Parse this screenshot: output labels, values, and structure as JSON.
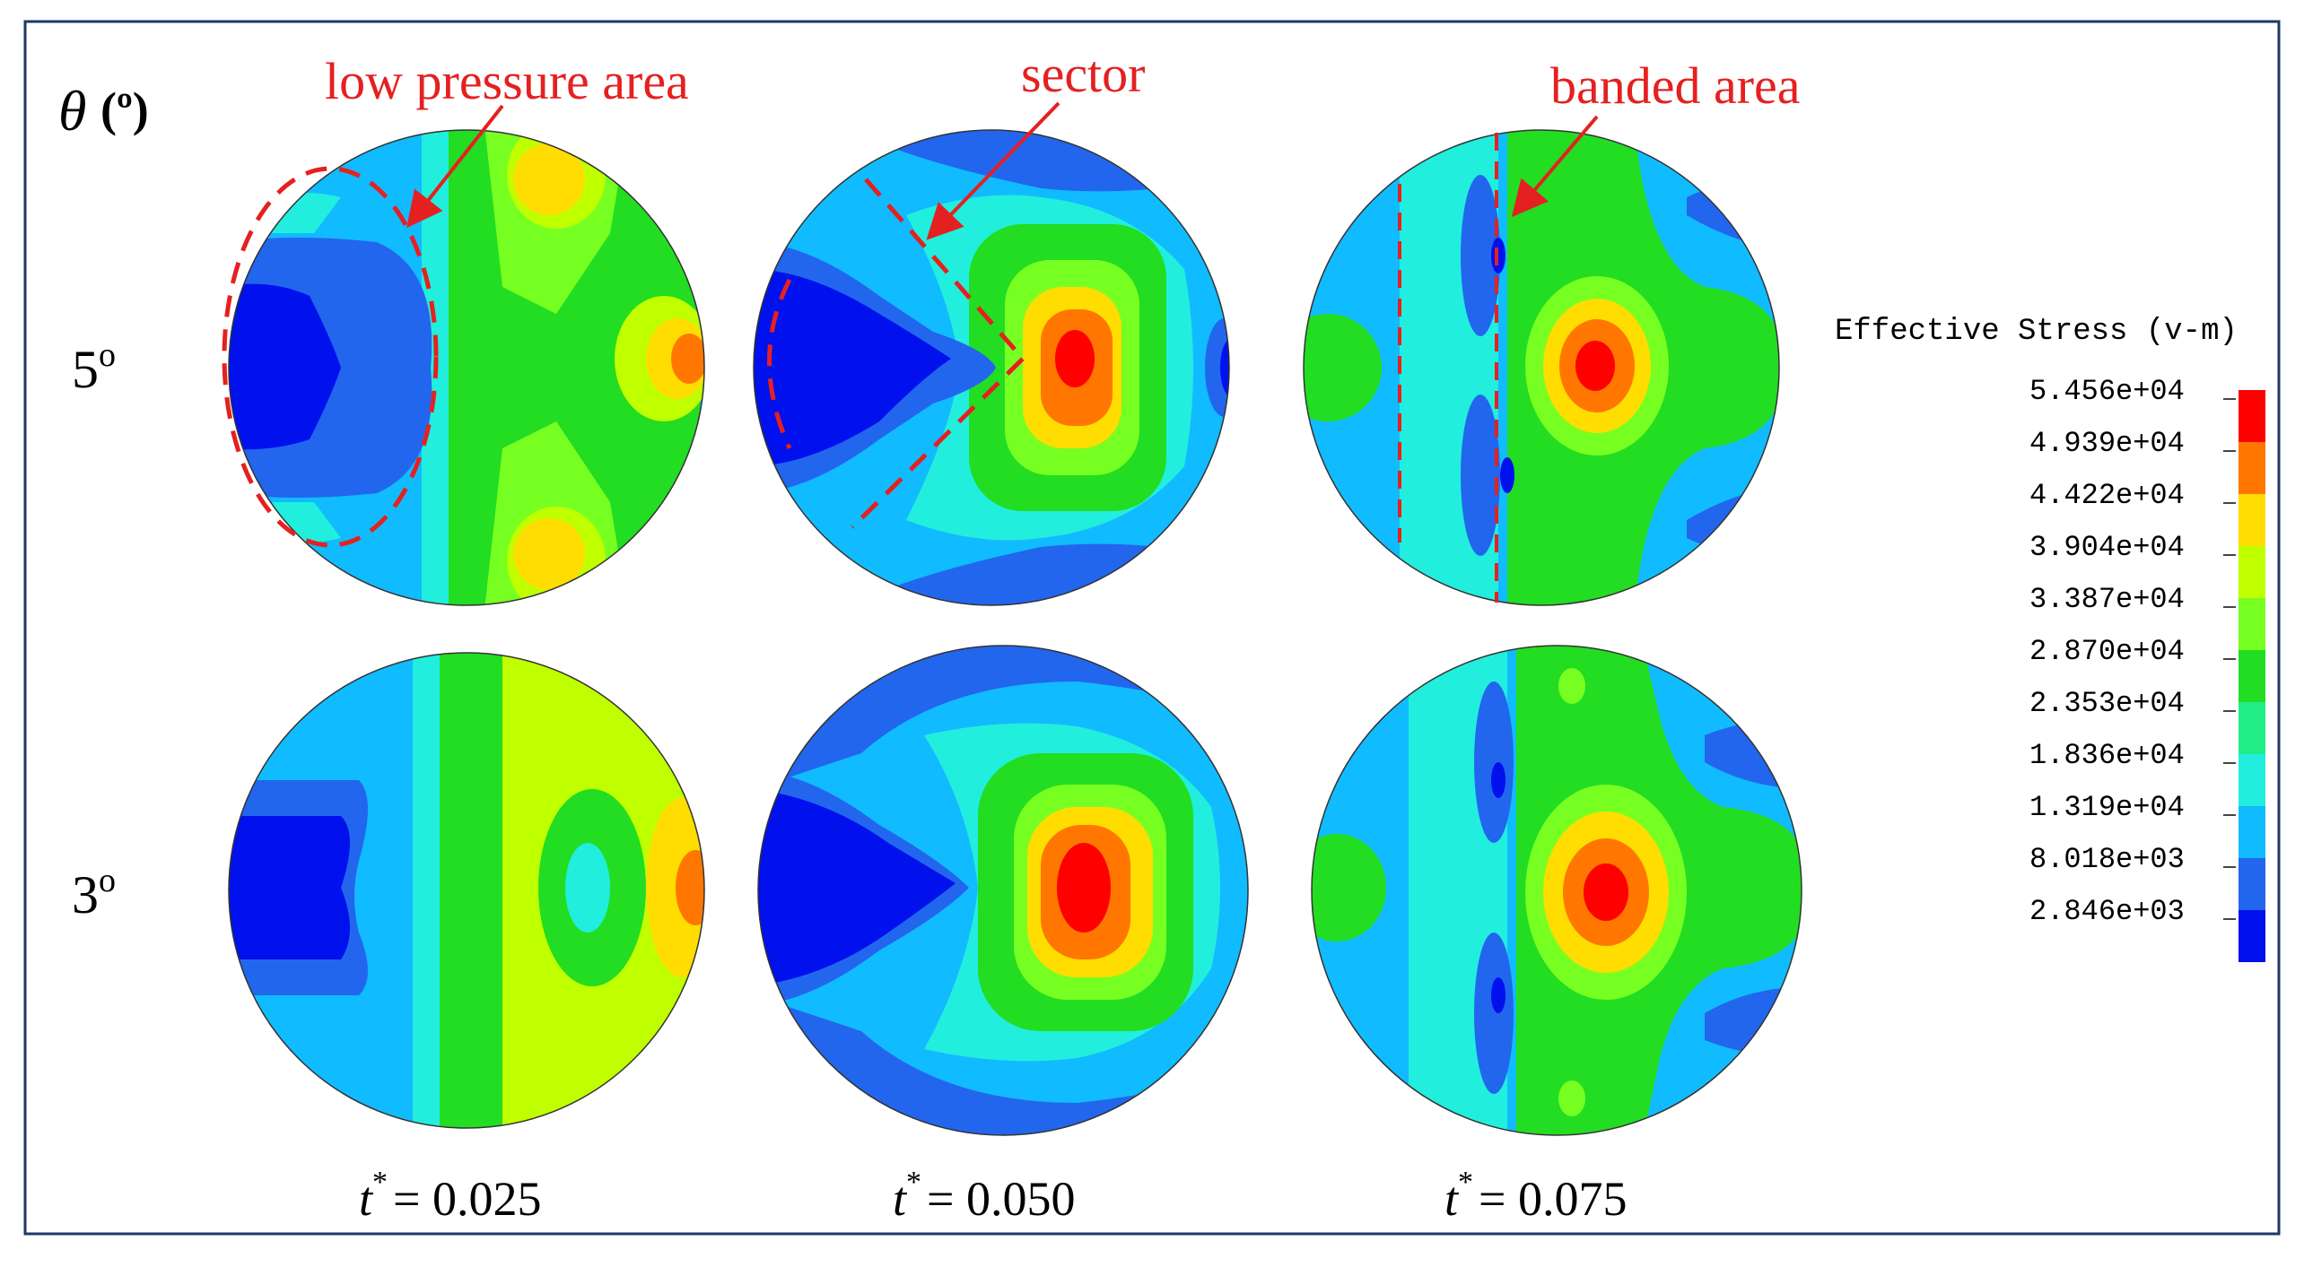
{
  "figure": {
    "axis_label_symbol": "θ",
    "axis_label_unit": "(º)",
    "rows": [
      {
        "label": "5",
        "unit": "o"
      },
      {
        "label": "3",
        "unit": "o"
      }
    ],
    "columns": [
      {
        "label": "t",
        "superscript": "*",
        "value": "= 0.025"
      },
      {
        "label": "t",
        "superscript": "*",
        "value": "= 0.050"
      },
      {
        "label": "t",
        "superscript": "*",
        "value": "= 0.075"
      }
    ],
    "annotations": [
      {
        "text": "low pressure area"
      },
      {
        "text": "sector"
      },
      {
        "text": "banded area"
      }
    ],
    "colorbar": {
      "title": "Effective Stress (v-m)",
      "values": [
        "5.456e+04",
        "4.939e+04",
        "4.422e+04",
        "3.904e+04",
        "3.387e+04",
        "2.870e+04",
        "2.353e+04",
        "1.836e+04",
        "1.319e+04",
        "8.018e+03",
        "2.846e+03"
      ],
      "colors": [
        "#ff0000",
        "#ff7700",
        "#ffdd00",
        "#bfff00",
        "#77ff22",
        "#22dd22",
        "#22ee88",
        "#22eedd",
        "#11bbff",
        "#2266ee",
        "#0011ee"
      ]
    },
    "annotation_color": "#e52020",
    "frame_color": "#1f3864"
  }
}
